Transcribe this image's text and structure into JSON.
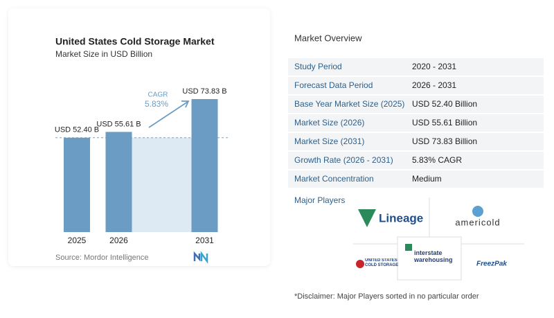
{
  "chart_data": {
    "type": "bar",
    "title": "United States Cold Storage Market",
    "subtitle": "Market Size in USD Billion",
    "categories": [
      "2025",
      "2026",
      "2031"
    ],
    "values": [
      52.4,
      55.61,
      73.83
    ],
    "value_labels": [
      "USD 52.40 B",
      "USD 55.61 B",
      "USD 73.83 B"
    ],
    "color": "#6b9cc3",
    "annotation": {
      "label": "CAGR",
      "value": "5.83%"
    },
    "source": "Source: Mordor Intelligence"
  },
  "overview": {
    "title": "Market Overview",
    "rows": [
      [
        "Study Period",
        "2020 - 2031"
      ],
      [
        "Forecast Data Period",
        "2026 - 2031"
      ],
      [
        "Base Year Market Size (2025)",
        "USD 52.40 Billion"
      ],
      [
        "Market Size (2026)",
        "USD 55.61 Billion"
      ],
      [
        "Market Size (2031)",
        "USD 73.83 Billion"
      ],
      [
        "Growth Rate (2026 - 2031)",
        "5.83% CAGR"
      ],
      [
        "Market Concentration",
        "Medium"
      ]
    ]
  },
  "major_players": {
    "title": "Major Players",
    "logos": [
      "Lineage",
      "americold",
      "UNITED STATES COLD STORAGE",
      "interstate warehousing",
      "FreezPak"
    ]
  },
  "disclaimer": "*Disclaimer: Major Players sorted in no particular order"
}
